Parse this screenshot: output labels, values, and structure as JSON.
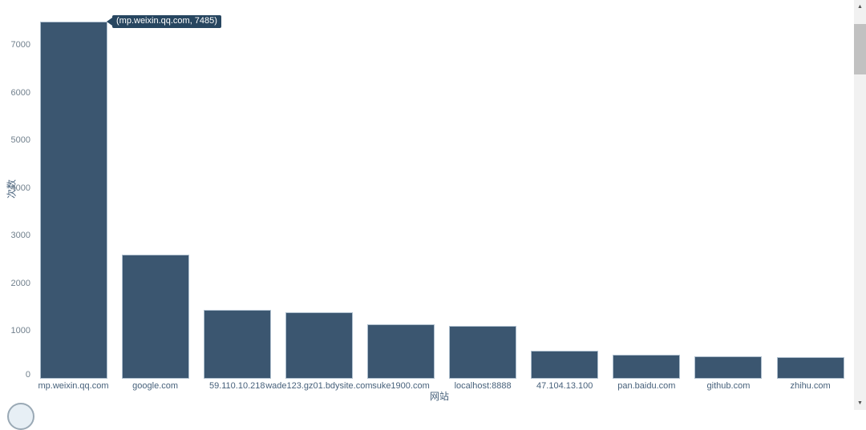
{
  "chart_data": {
    "type": "bar",
    "title": "",
    "xlabel": "网站",
    "ylabel": "次数",
    "categories": [
      "mp.weixin.qq.com",
      "google.com",
      "59.110.10.218",
      "wade123.gz01.bdysite.com",
      "suke1900.com",
      "localhost:8888",
      "47.104.13.100",
      "pan.baidu.com",
      "github.com",
      "zhihu.com"
    ],
    "values": [
      7485,
      2600,
      1440,
      1395,
      1140,
      1115,
      595,
      510,
      470,
      455
    ],
    "ylim": [
      0,
      7600
    ],
    "yticks": [
      0,
      1000,
      2000,
      3000,
      4000,
      5000,
      6000,
      7000
    ],
    "grid": false,
    "legend": "none",
    "bar_color": "#3b5670",
    "bar_border_color": "#aebfce"
  },
  "tooltip": {
    "text": "(mp.weixin.qq.com, 7485)",
    "bg_color": "#274660",
    "text_color": "#ffffff"
  },
  "scrollbar": {
    "up_arrow": "▲",
    "down_arrow": "▼"
  }
}
